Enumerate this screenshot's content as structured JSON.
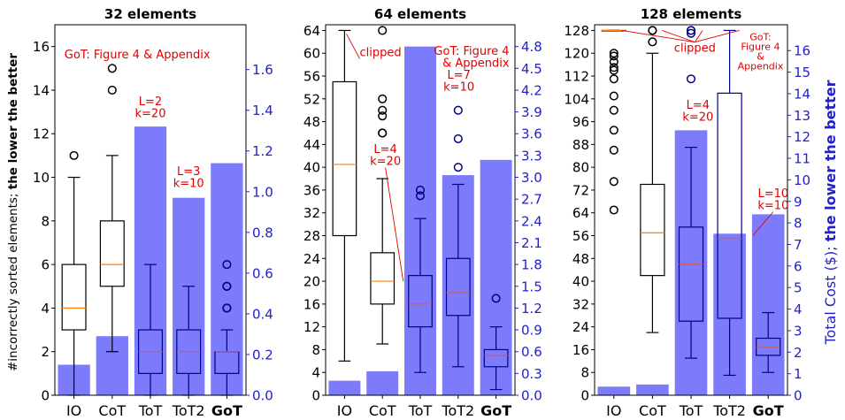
{
  "figure": {
    "left_axis_label_plain": "#incorrectly sorted elements; ",
    "left_axis_label_bold": "the lower the better",
    "right_axis_label_plain": "Total Cost ($); ",
    "right_axis_label_bold": "the lower the better"
  },
  "colors": {
    "bar": "#7b7bfb",
    "box_dark": "#000000",
    "box_blue": "#00008b",
    "median": "#ff7f0e",
    "median_blue": "#cd5c5c",
    "annotation": "#e00000",
    "right_axis": "#2222cc"
  },
  "chart_data": [
    {
      "type": "box+bar",
      "title": "32 elements",
      "categories": [
        "IO",
        "CoT",
        "ToT",
        "ToT2",
        "GoT"
      ],
      "bold_category": "GoT",
      "left_ylim": [
        0,
        17
      ],
      "left_ticks": [
        "0",
        "2",
        "4",
        "6",
        "8",
        "10",
        "12",
        "14",
        "16"
      ],
      "right_ylim": [
        0,
        1.82
      ],
      "right_ticks": [
        "0.0",
        "0.2",
        "0.4",
        "0.6",
        "0.8",
        "1.0",
        "1.2",
        "1.4",
        "1.6"
      ],
      "costs": [
        0.15,
        0.29,
        1.32,
        0.97,
        1.14
      ],
      "boxes": [
        {
          "whislo": 0,
          "q1": 3,
          "med": 4,
          "q3": 6,
          "whishi": 10,
          "fliers": [
            11
          ],
          "style": "dark"
        },
        {
          "whislo": 2,
          "q1": 5,
          "med": 6,
          "q3": 8,
          "whishi": 11,
          "fliers": [
            14,
            15
          ],
          "style": "dark"
        },
        {
          "whislo": 0,
          "q1": 1,
          "med": 2,
          "q3": 3,
          "whishi": 6,
          "fliers": [],
          "style": "blue"
        },
        {
          "whislo": 0,
          "q1": 1,
          "med": 2,
          "q3": 3,
          "whishi": 5,
          "fliers": [],
          "style": "blue"
        },
        {
          "whislo": 0,
          "q1": 1,
          "med": 2,
          "q3": 2,
          "whishi": 3,
          "fliers": [
            4,
            4,
            5,
            5,
            6
          ],
          "style": "blue"
        }
      ],
      "annotations": [
        {
          "text": "GoT: Figure 4 & Appendix",
          "lines": [
            "GoT: Figure 4 & Appendix"
          ],
          "anchor": "ax",
          "ax": 0.05,
          "ay": 0.94
        },
        {
          "text": "L=2 k=20",
          "lines": [
            "L=2",
            "k=20"
          ],
          "anchor": "data",
          "cat": 2,
          "y": 13.3,
          "align": "middle"
        },
        {
          "text": "L=3 k=10",
          "lines": [
            "L=3",
            "k=10"
          ],
          "anchor": "data",
          "cat": 3,
          "y": 10.1,
          "align": "middle"
        }
      ]
    },
    {
      "type": "box+bar",
      "title": "64 elements",
      "categories": [
        "IO",
        "CoT",
        "ToT",
        "ToT2",
        "GoT"
      ],
      "bold_category": "GoT",
      "left_ylim": [
        0,
        65
      ],
      "left_ticks": [
        "0",
        "4",
        "8",
        "12",
        "16",
        "20",
        "24",
        "28",
        "32",
        "36",
        "40",
        "44",
        "48",
        "52",
        "56",
        "60",
        "64"
      ],
      "right_ylim": [
        0,
        5.1
      ],
      "right_ticks": [
        "0.0",
        "0.3",
        "0.6",
        "0.9",
        "1.2",
        "1.5",
        "1.8",
        "2.1",
        "2.4",
        "2.7",
        "3.0",
        "3.3",
        "3.6",
        "3.9",
        "4.2",
        "4.5",
        "4.8"
      ],
      "costs": [
        0.2,
        0.33,
        4.8,
        3.03,
        3.24
      ],
      "boxes": [
        {
          "whislo": 6,
          "q1": 28,
          "med": 40.5,
          "q3": 55,
          "whishi": 64,
          "fliers": [],
          "style": "dark"
        },
        {
          "whislo": 9,
          "q1": 16,
          "med": 20,
          "q3": 25,
          "whishi": 38,
          "fliers": [
            46,
            46,
            49,
            50,
            52,
            64
          ],
          "style": "dark"
        },
        {
          "whislo": 4,
          "q1": 12,
          "med": 16,
          "q3": 21,
          "whishi": 31,
          "fliers": [
            35,
            36
          ],
          "style": "blue"
        },
        {
          "whislo": 5,
          "q1": 14,
          "med": 18,
          "q3": 24,
          "whishi": 37,
          "fliers": [
            40,
            45,
            50
          ],
          "style": "blue"
        },
        {
          "whislo": 1,
          "q1": 5,
          "med": 7,
          "q3": 8,
          "whishi": 12,
          "fliers": [
            17
          ],
          "style": "blue"
        }
      ],
      "annotations": [
        {
          "text": "clipped",
          "lines": [
            "clipped"
          ],
          "anchor": "data",
          "cat": 0.4,
          "y": 59.5,
          "align": "start",
          "leader": {
            "cat": 0.05,
            "y": 63.4
          }
        },
        {
          "text": "GoT: Figure 4 & Appendix",
          "lines": [
            "GoT: Figure 4",
            "& Appendix"
          ],
          "anchor": "ax",
          "ax": 0.97,
          "ay": 0.95,
          "align": "end"
        },
        {
          "text": "L=4 k=20",
          "lines": [
            "L=4",
            "k=20"
          ],
          "anchor": "data",
          "cat": 1.08,
          "y": 42.5,
          "align": "middle",
          "leader": {
            "cat": 1.55,
            "y": 20
          }
        },
        {
          "text": "L=7 k=10",
          "lines": [
            "L=7",
            "k=10"
          ],
          "anchor": "data",
          "cat": 3.02,
          "y": 55.5,
          "align": "middle"
        }
      ]
    },
    {
      "type": "box+bar",
      "title": "128 elements",
      "categories": [
        "IO",
        "CoT",
        "ToT",
        "ToT2",
        "GoT"
      ],
      "bold_category": "GoT",
      "left_ylim": [
        0,
        130
      ],
      "left_ticks": [
        "0",
        "8",
        "16",
        "24",
        "32",
        "40",
        "48",
        "56",
        "64",
        "72",
        "80",
        "88",
        "96",
        "104",
        "112",
        "120",
        "128"
      ],
      "right_ylim": [
        0,
        17.2
      ],
      "right_ticks": [
        "0",
        "1",
        "2",
        "3",
        "4",
        "5",
        "6",
        "7",
        "8",
        "9",
        "10",
        "11",
        "12",
        "13",
        "14",
        "15",
        "16"
      ],
      "costs": [
        0.4,
        0.5,
        12.3,
        7.5,
        8.4
      ],
      "boxes": [
        {
          "whislo": 128,
          "q1": 128,
          "med": 128,
          "q3": 128,
          "whishi": 128,
          "fliers": [
            65,
            75,
            86,
            93,
            100,
            105,
            111,
            114,
            115,
            117,
            119,
            120
          ],
          "style": "dark"
        },
        {
          "whislo": 22,
          "q1": 42,
          "med": 57,
          "q3": 74,
          "whishi": 120,
          "fliers": [
            124,
            128,
            128
          ],
          "style": "dark"
        },
        {
          "whislo": 13,
          "q1": 26,
          "med": 46,
          "q3": 59,
          "whishi": 87,
          "fliers": [
            111,
            127,
            128,
            128
          ],
          "style": "blue"
        },
        {
          "whislo": 7,
          "q1": 27,
          "med": 55,
          "q3": 106,
          "whishi": 128,
          "fliers": [],
          "style": "blue"
        },
        {
          "whislo": 8,
          "q1": 14,
          "med": 17,
          "q3": 20,
          "whishi": 29,
          "fliers": [],
          "style": "blue"
        }
      ],
      "annotations": [
        {
          "text": "clipped",
          "lines": [
            "clipped"
          ],
          "anchor": "data",
          "cat": 2.1,
          "y": 120.5,
          "align": "middle",
          "fan": [
            {
              "cat": 0.2,
              "y": 128
            },
            {
              "cat": 1.25,
              "y": 128
            },
            {
              "cat": 2.3,
              "y": 128
            },
            {
              "cat": 3.25,
              "y": 128
            }
          ]
        },
        {
          "text": "GoT: Figure 4 & Appendix",
          "lines": [
            "GoT:",
            "Figure 4",
            "&",
            "Appendix"
          ],
          "anchor": "ax",
          "ax": 0.86,
          "ay": 0.985,
          "align": "middle",
          "small": true
        },
        {
          "text": "L=4 k=20",
          "lines": [
            "L=4",
            "k=20"
          ],
          "anchor": "data",
          "cat": 2.18,
          "y": 100.5,
          "align": "middle"
        },
        {
          "text": "L=10 k=10",
          "lines": [
            "L=10",
            "k=10"
          ],
          "anchor": "data",
          "cat": 4.13,
          "y": 69.5,
          "align": "middle",
          "leader": {
            "cat": 3.6,
            "y": 56
          }
        }
      ]
    }
  ]
}
